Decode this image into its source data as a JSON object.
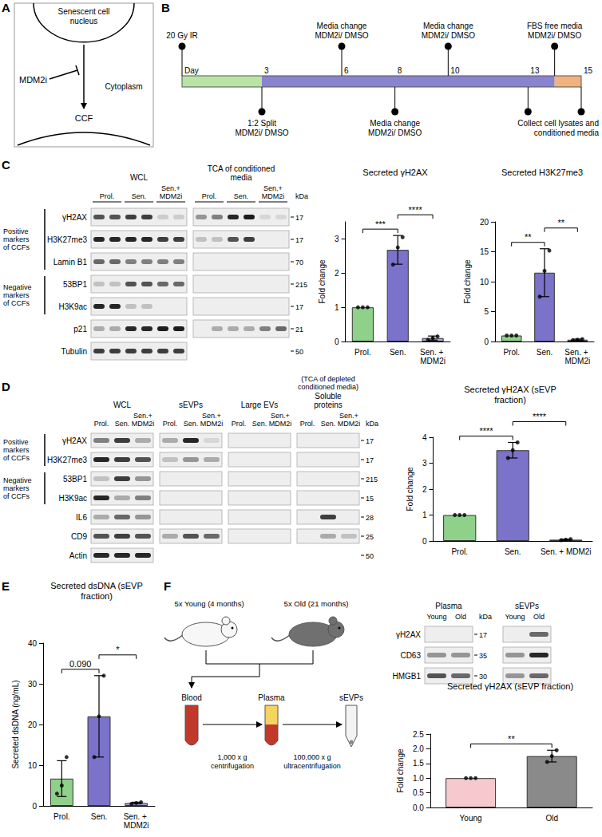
{
  "panels": {
    "A": {
      "letter": "A",
      "nucleus": [
        "Senescent cell",
        "nucleus"
      ],
      "inhibitor": "MDM2i",
      "compartment": "Cytoplasm",
      "product": "CCF"
    },
    "B": {
      "letter": "B",
      "day_label": "Day",
      "span": [
        0,
        15
      ],
      "day_ticks": [
        3,
        6,
        8,
        10,
        13,
        15
      ],
      "phases": [
        {
          "from": 0,
          "to": 3,
          "color": "#b9e4a5"
        },
        {
          "from": 3,
          "to": 14,
          "color": "#8a83cf"
        },
        {
          "from": 14,
          "to": 15,
          "color": "#f2b27e"
        }
      ],
      "events": [
        {
          "day": 0,
          "side": "above",
          "text": [
            "20 Gy IR"
          ]
        },
        {
          "day": 3,
          "side": "below",
          "text": [
            "1:2 Split",
            "MDM2i/ DMSO"
          ]
        },
        {
          "day": 6,
          "side": "above",
          "text": [
            "Media change",
            "MDM2i/ DMSO"
          ]
        },
        {
          "day": 8,
          "side": "below",
          "text": [
            "Media change",
            "MDM2i/ DMSO"
          ]
        },
        {
          "day": 10,
          "side": "above",
          "text": [
            "Media change",
            "MDM2i/ DMSO"
          ]
        },
        {
          "day": 13,
          "side": "below",
          "text": []
        },
        {
          "day": 14,
          "side": "above",
          "text": [
            "FBS free media",
            "MDM2i/ DMSO"
          ]
        },
        {
          "day": 15,
          "side": "below",
          "text": [
            "Collect cell lysates and",
            "conditioned media"
          ]
        }
      ]
    },
    "C": {
      "letter": "C",
      "blots": {
        "lanes": [
          "Prol.",
          "Sen.",
          "Sen.+ MDM2i"
        ],
        "replicates": 2,
        "groups": [
          {
            "name": "Positive markers of CCFs",
            "rows": [
              "γH2AX",
              "H3K27me3",
              "Lamin B1"
            ]
          },
          {
            "name": "Negative markers of CCFs",
            "rows": [
              "53BP1",
              "H3K9ac"
            ]
          },
          {
            "rows": [
              "p21"
            ]
          },
          {
            "rows": [
              "Tubulin"
            ]
          }
        ],
        "kda_label": "kDa",
        "kda": [
          "17",
          "17",
          "70",
          "215",
          "17",
          "21",
          "50"
        ],
        "blocks": [
          {
            "title": "WCL",
            "bands": [
              [
                0.7,
                0.7,
                0.8,
                0.8,
                0.15,
                0.15
              ],
              [
                0.9,
                0.9,
                0.9,
                0.9,
                0.8,
                0.8
              ],
              [
                0.6,
                0.6,
                0.5,
                0.5,
                0.5,
                0.5
              ],
              [
                0.2,
                0.2,
                0.7,
                0.7,
                0.6,
                0.6
              ],
              [
                0.9,
                0.9,
                0.2,
                0.2,
                0,
                0
              ],
              [
                0.3,
                0.3,
                0.9,
                0.9,
                0.95,
                0.95
              ],
              [
                0.8,
                0.8,
                0.8,
                0.8,
                0.8,
                0.8
              ]
            ]
          },
          {
            "title": "TCA of conditioned media",
            "bands": [
              [
                0.4,
                0.5,
                0.9,
                0.95,
                0.1,
                0.1
              ],
              [
                0.2,
                0.2,
                0.7,
                0.8,
                0,
                0
              ],
              [
                0,
                0,
                0,
                0,
                0,
                0
              ],
              [
                0,
                0,
                0,
                0,
                0,
                0
              ],
              [
                0,
                0,
                0,
                0,
                0,
                0
              ],
              [
                0,
                0.3,
                0.3,
                0.3,
                0.5,
                0.6
              ],
              null
            ]
          }
        ]
      }
    },
    "D": {
      "letter": "D",
      "blots": {
        "lanes": [
          "Prol.",
          "Sen.",
          "Sen.+ MDM2i"
        ],
        "replicates": 1,
        "groups": [
          {
            "name": "Positive markers of CCFs",
            "rows": [
              "γH2AX",
              "H3K27me3"
            ]
          },
          {
            "name": "Negative markers of CCFs",
            "rows": [
              "53BP1",
              "H3K9ac"
            ]
          },
          {
            "rows": [
              "IL6"
            ]
          },
          {
            "rows": [
              "CD9"
            ]
          },
          {
            "rows": [
              "Actin"
            ]
          }
        ],
        "kda_label": "kDa",
        "kda": [
          "17",
          "17",
          "215",
          "15",
          "28",
          "25",
          "50"
        ],
        "blocks": [
          {
            "title": "WCL",
            "bands": [
              [
                0.5,
                0.8,
                0.3
              ],
              [
                0.9,
                0.8,
                0.7
              ],
              [
                0.2,
                0.8,
                0.4
              ],
              [
                0.9,
                0.3,
                0.5
              ],
              [
                0.3,
                0.6,
                0.4
              ],
              [
                0.7,
                0.8,
                0.7
              ],
              [
                0.9,
                0.9,
                0.9
              ]
            ]
          },
          {
            "title": "sEVPs",
            "bands": [
              [
                0.3,
                0.9,
                0.1
              ],
              [
                0.2,
                0.4,
                0.3
              ],
              [
                0,
                0,
                0
              ],
              [
                0,
                0,
                0
              ],
              [
                0,
                0,
                0
              ],
              [
                0.3,
                0.7,
                0.6
              ],
              null
            ]
          },
          {
            "title": "Large EVs",
            "bands": [
              [
                0,
                0,
                0
              ],
              [
                0,
                0,
                0
              ],
              [
                0,
                0,
                0
              ],
              [
                0,
                0,
                0
              ],
              [
                0,
                0,
                0
              ],
              [
                0,
                0,
                0
              ],
              null
            ]
          },
          {
            "title": "Soluble proteins",
            "subtitle": "(TCA of depleted conditioned media)",
            "bands": [
              [
                0,
                0,
                0
              ],
              [
                0,
                0,
                0
              ],
              [
                0,
                0,
                0
              ],
              [
                0,
                0,
                0
              ],
              [
                0,
                0.8,
                0
              ],
              [
                0,
                0.3,
                0.2
              ],
              null
            ]
          }
        ]
      }
    },
    "E": {
      "letter": "E"
    },
    "F": {
      "letter": "F",
      "groups": [
        {
          "label": "5x Young (4 months)",
          "color": "#f7f7f7"
        },
        {
          "label": "5x Old (21 months)",
          "color": "#707070"
        }
      ],
      "steps": [
        "Blood",
        "Plasma",
        "sEVPs"
      ],
      "spins": [
        [
          "1,000 x g",
          "centrifugation"
        ],
        [
          "100,000 x g",
          "ultracentrifugation"
        ]
      ],
      "blots": {
        "lanes": [
          "Young",
          "Old"
        ],
        "replicates": 1,
        "groups": [
          {
            "rows": [
              "γH2AX"
            ]
          },
          {
            "rows": [
              "CD63"
            ]
          },
          {
            "rows": [
              "HMGB1"
            ]
          }
        ],
        "kda_label": "kDa",
        "kda": [
          "17",
          "35",
          "30"
        ],
        "blocks": [
          {
            "title": "Plasma",
            "bands": [
              [
                0,
                0
              ],
              [
                0.4,
                0.4
              ],
              [
                0.7,
                0.6
              ]
            ]
          },
          {
            "title": "sEVPs",
            "bands": [
              [
                0,
                0.6
              ],
              [
                0.4,
                0.9
              ],
              [
                0.4,
                0.6
              ]
            ]
          }
        ]
      }
    }
  },
  "chart_data": [
    {
      "type": "bar",
      "title": "Secreted γH2AX",
      "y_label": "Fold change",
      "categories": [
        "Prol.",
        "Sen.",
        "Sen. + MDM2i"
      ],
      "values": [
        1,
        2.68,
        0.1
      ],
      "errors": [
        0,
        0.42,
        0.06
      ],
      "points": [
        [
          1,
          1,
          1
        ],
        [
          2.25,
          2.75,
          3.05
        ],
        [
          0.05,
          0.1,
          0.15
        ]
      ],
      "colors": [
        "#8fd08a",
        "#7b72c9",
        "#a7a3dc"
      ],
      "ylim": [
        0,
        3.5
      ],
      "yticks": [
        0,
        1,
        2,
        3
      ],
      "grid": false,
      "significance": [
        {
          "from": 0,
          "to": 1,
          "label": "***"
        },
        {
          "from": 1,
          "to": 2,
          "label": "****"
        }
      ]
    },
    {
      "type": "bar",
      "title": "Secreted H3K27me3",
      "y_label": "Fold change",
      "categories": [
        "Prol.",
        "Sen.",
        "Sen. + MDM2i"
      ],
      "values": [
        1,
        11.5,
        0.3
      ],
      "errors": [
        0,
        4,
        0.1
      ],
      "points": [
        [
          1,
          1,
          1
        ],
        [
          7.5,
          11.8,
          15.2
        ],
        [
          0.2,
          0.3,
          0.4
        ]
      ],
      "colors": [
        "#8fd08a",
        "#7b72c9",
        "#a7a3dc"
      ],
      "ylim": [
        0,
        20
      ],
      "yticks": [
        0,
        5,
        10,
        15,
        20
      ],
      "grid": false,
      "significance": [
        {
          "from": 0,
          "to": 1,
          "label": "**"
        },
        {
          "from": 1,
          "to": 2,
          "label": "**"
        }
      ]
    },
    {
      "type": "bar",
      "title": "Secreted γH2AX (sEVP fraction)",
      "y_label": "Fold change",
      "categories": [
        "Prol.",
        "Sen.",
        "Sen. + MDM2i"
      ],
      "values": [
        1,
        3.5,
        0.05
      ],
      "errors": [
        0,
        0.3,
        0.02
      ],
      "points": [
        [
          1,
          1,
          1
        ],
        [
          3.2,
          3.5,
          3.8
        ],
        [
          0.03,
          0.05,
          0.07
        ]
      ],
      "colors": [
        "#8fd08a",
        "#7b72c9",
        "#a7a3dc"
      ],
      "ylim": [
        0,
        4
      ],
      "yticks": [
        0,
        1,
        2,
        3,
        4
      ],
      "grid": false,
      "significance": [
        {
          "from": 0,
          "to": 1,
          "label": "****"
        },
        {
          "from": 1,
          "to": 2,
          "label": "****"
        }
      ]
    },
    {
      "type": "bar",
      "title": "Secreted dsDNA (sEVP fraction)",
      "y_label": "Secreted dsDNA (ng/mL)",
      "categories": [
        "Prol.",
        "Sen.",
        "Sen. + MDM2i"
      ],
      "values": [
        6.7,
        22,
        0.7
      ],
      "errors": [
        4.4,
        10,
        0.2
      ],
      "points": [
        [
          3,
          5,
          12
        ],
        [
          12,
          22,
          32
        ],
        [
          0.5,
          0.7,
          0.9
        ]
      ],
      "colors": [
        "#8fd08a",
        "#7b72c9",
        "#a7a3dc"
      ],
      "ylim": [
        0,
        40
      ],
      "yticks": [
        0,
        10,
        20,
        30,
        40
      ],
      "grid": false,
      "significance": [
        {
          "from": 0,
          "to": 1,
          "label": "0.090"
        },
        {
          "from": 1,
          "to": 2,
          "label": "*"
        }
      ]
    },
    {
      "type": "bar",
      "title": "Secreted γH2AX (sEVP fraction)",
      "y_label": "Fold change",
      "categories": [
        "Young",
        "Old"
      ],
      "values": [
        1,
        1.75
      ],
      "errors": [
        0,
        0.2
      ],
      "points": [
        [
          1,
          1,
          1
        ],
        [
          1.55,
          1.75,
          1.95
        ]
      ],
      "colors": [
        "#f6c9cf",
        "#8a8a8a"
      ],
      "ylim": [
        0,
        2.5
      ],
      "yticks": [
        {
          "value": 0,
          "label": "0.0"
        },
        {
          "value": 0.5,
          "label": "0.5"
        },
        {
          "value": 1,
          "label": "1.0"
        },
        {
          "value": 1.5,
          "label": "1.5"
        },
        {
          "value": 2,
          "label": "2.0"
        },
        {
          "value": 2.5,
          "label": "2.5"
        }
      ],
      "grid": false,
      "significance": [
        {
          "from": 0,
          "to": 1,
          "label": "**"
        }
      ]
    }
  ]
}
